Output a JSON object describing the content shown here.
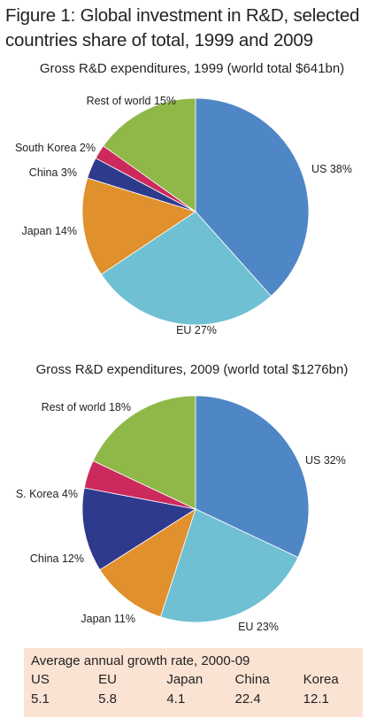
{
  "figure_title": "Figure 1: Global investment in R&D, selected countries share of total, 1999 and 2009",
  "chart_data": [
    {
      "type": "pie",
      "title": "Gross R&D expenditures, 1999 (world total $641bn)",
      "slices": [
        {
          "name": "US",
          "label": "US 38%",
          "value": 38,
          "color": "#4f86c6"
        },
        {
          "name": "EU",
          "label": "EU 27%",
          "value": 27,
          "color": "#6fc0d2"
        },
        {
          "name": "Japan",
          "label": "Japan 14%",
          "value": 14,
          "color": "#e0902c"
        },
        {
          "name": "China",
          "label": "China 3%",
          "value": 3,
          "color": "#2e3a8c"
        },
        {
          "name": "South Korea",
          "label": "South Korea 2%",
          "value": 2,
          "color": "#cc2a5c"
        },
        {
          "name": "Rest of world",
          "label": "Rest of world 15%",
          "value": 15,
          "color": "#8fb848"
        }
      ]
    },
    {
      "type": "pie",
      "title": "Gross R&D expenditures, 2009 (world total $1276bn)",
      "slices": [
        {
          "name": "US",
          "label": "US 32%",
          "value": 32,
          "color": "#4f86c6"
        },
        {
          "name": "EU",
          "label": "EU 23%",
          "value": 23,
          "color": "#6fc0d2"
        },
        {
          "name": "Japan",
          "label": "Japan 11%",
          "value": 11,
          "color": "#e0902c"
        },
        {
          "name": "China",
          "label": "China 12%",
          "value": 12,
          "color": "#2e3a8c"
        },
        {
          "name": "S. Korea",
          "label": "S. Korea 4%",
          "value": 4,
          "color": "#cc2a5c"
        },
        {
          "name": "Rest of world",
          "label": "Rest of world 18%",
          "value": 18,
          "color": "#8fb848"
        }
      ]
    },
    {
      "type": "table",
      "title": "Average annual growth rate, 2000-09",
      "columns": [
        "US",
        "EU",
        "Japan",
        "China",
        "Korea"
      ],
      "values": [
        "5.1",
        "5.8",
        "4.1",
        "22.4",
        "12.1"
      ],
      "background": "#fbe3d3"
    }
  ]
}
